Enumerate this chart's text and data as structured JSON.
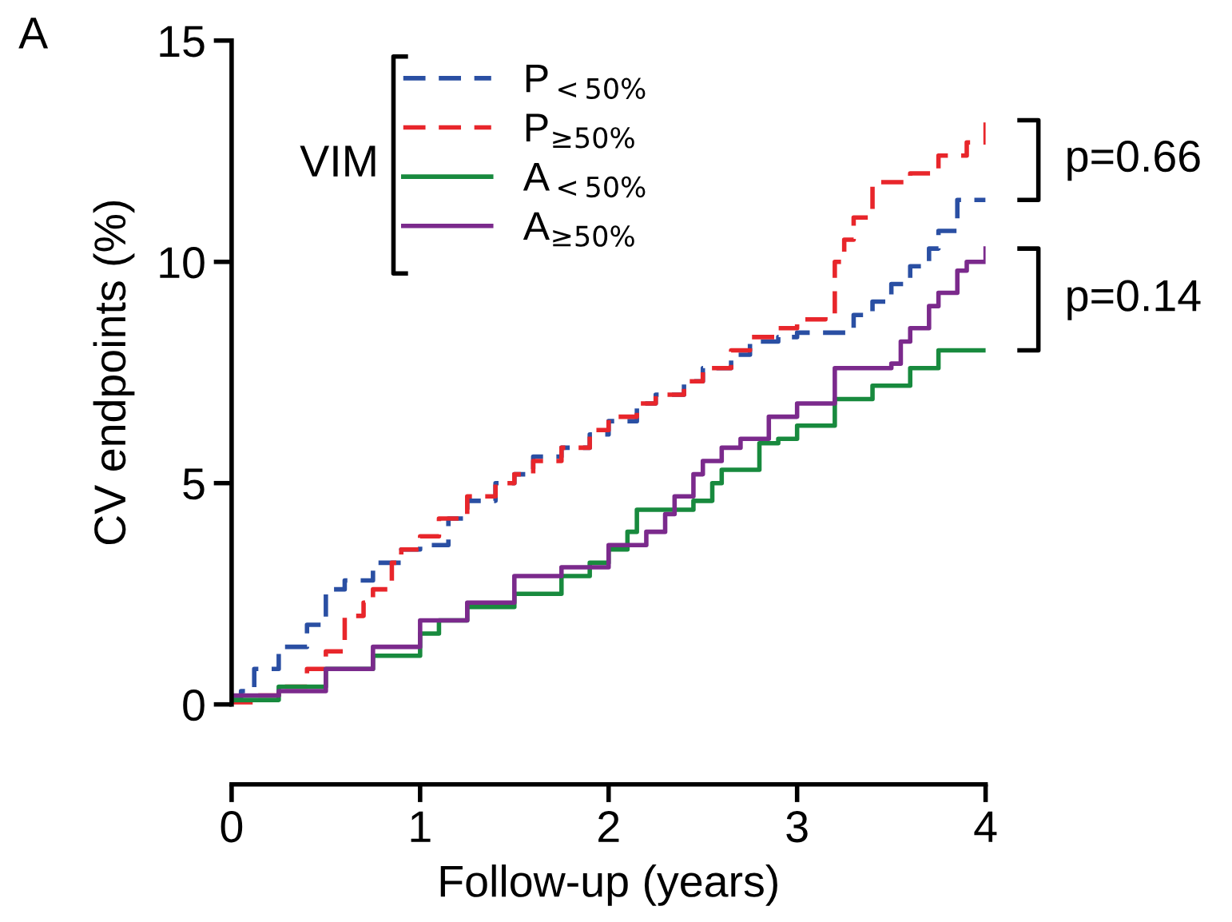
{
  "chart_data": {
    "type": "step",
    "xlabel": "Follow-up (years)",
    "ylabel": "CV endpoints (%)",
    "legend_title": "VIM",
    "legend": "top left",
    "grid": false,
    "xlim": [
      0,
      4
    ],
    "xticks": [
      0,
      1,
      2,
      3,
      4
    ],
    "ylim": [
      0,
      15
    ],
    "yticks": [
      0,
      5,
      10,
      15
    ],
    "annotations": [
      "A",
      "p=0.66",
      "p=0.14"
    ],
    "series": [
      {
        "name": "P$_{<50%}$",
        "color": "#2a4fa3",
        "line_style": "dashed",
        "x": [
          0,
          0.05,
          0.12,
          0.25,
          0.4,
          0.5,
          0.6,
          0.75,
          0.9,
          1.0,
          1.15,
          1.25,
          1.4,
          1.5,
          1.6,
          1.75,
          1.9,
          2.0,
          2.15,
          2.25,
          2.4,
          2.5,
          2.65,
          2.75,
          2.9,
          3.0,
          3.3,
          3.4,
          3.5,
          3.6,
          3.7,
          3.75,
          3.85,
          4.0
        ],
        "values": [
          0.1,
          0.3,
          0.8,
          1.3,
          1.8,
          2.6,
          2.8,
          3.2,
          3.5,
          3.6,
          4.2,
          4.6,
          5.0,
          5.2,
          5.6,
          5.8,
          6.1,
          6.4,
          6.8,
          7.0,
          7.3,
          7.6,
          7.9,
          8.2,
          8.3,
          8.4,
          8.8,
          9.1,
          9.5,
          9.9,
          10.3,
          10.7,
          11.4,
          11.4
        ]
      },
      {
        "name": "P$_{≥50%}$",
        "color": "#e8262b",
        "line_style": "dashed",
        "x": [
          0,
          0.1,
          0.25,
          0.4,
          0.5,
          0.6,
          0.7,
          0.75,
          0.85,
          0.9,
          1.0,
          1.1,
          1.25,
          1.4,
          1.5,
          1.6,
          1.75,
          1.9,
          2.0,
          2.15,
          2.25,
          2.4,
          2.5,
          2.65,
          2.75,
          2.9,
          3.0,
          3.15,
          3.2,
          3.25,
          3.3,
          3.4,
          3.6,
          3.75,
          3.9,
          4.0
        ],
        "values": [
          0,
          0.2,
          0.4,
          0.8,
          1.2,
          2.0,
          2.3,
          2.6,
          3.2,
          3.5,
          3.8,
          4.2,
          4.7,
          5.0,
          5.2,
          5.5,
          5.8,
          6.2,
          6.5,
          6.8,
          7.0,
          7.3,
          7.6,
          8.0,
          8.3,
          8.5,
          8.7,
          8.8,
          10.0,
          10.5,
          11.0,
          11.8,
          12.0,
          12.4,
          12.7,
          13.2
        ]
      },
      {
        "name": "A$_{<50%}$",
        "color": "#188a3e",
        "line_style": "solid",
        "x": [
          0,
          0.25,
          0.5,
          0.75,
          1.0,
          1.1,
          1.25,
          1.5,
          1.75,
          1.9,
          2.0,
          2.1,
          2.15,
          2.45,
          2.55,
          2.6,
          2.8,
          2.9,
          3.0,
          3.2,
          3.4,
          3.6,
          3.75,
          4.0
        ],
        "values": [
          0.1,
          0.4,
          0.8,
          1.1,
          1.6,
          1.9,
          2.2,
          2.5,
          2.9,
          3.2,
          3.5,
          3.9,
          4.4,
          4.6,
          5.0,
          5.3,
          5.9,
          6.0,
          6.3,
          6.9,
          7.2,
          7.6,
          8.0,
          8.0
        ]
      },
      {
        "name": "A$_{≥50%}$",
        "color": "#7b2a8c",
        "line_style": "solid",
        "x": [
          0,
          0.25,
          0.5,
          0.75,
          1.0,
          1.25,
          1.5,
          1.75,
          2.0,
          2.2,
          2.3,
          2.35,
          2.45,
          2.5,
          2.6,
          2.7,
          2.85,
          3.0,
          3.2,
          3.5,
          3.55,
          3.6,
          3.7,
          3.75,
          3.85,
          3.9,
          4.0
        ],
        "values": [
          0.2,
          0.3,
          0.8,
          1.3,
          1.9,
          2.3,
          2.9,
          3.1,
          3.6,
          3.9,
          4.3,
          4.7,
          5.2,
          5.5,
          5.8,
          6.0,
          6.5,
          6.8,
          7.6,
          7.7,
          8.2,
          8.5,
          9.0,
          9.3,
          9.8,
          10.0,
          10.3
        ]
      }
    ]
  }
}
